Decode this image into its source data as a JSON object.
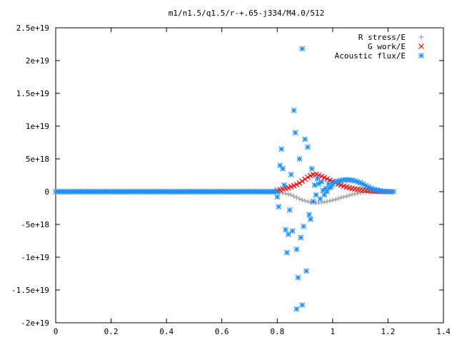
{
  "chart_data": {
    "type": "scatter",
    "title": "m1/n1.5/q1.5/r-+.65-j334/M4.0/512",
    "xlabel": "",
    "ylabel": "",
    "xlim": [
      0,
      1.4
    ],
    "ylim": [
      -2e+19,
      2.5e+19
    ],
    "grid": false,
    "legend_position": "top-right",
    "x_ticks": [
      {
        "value": 0,
        "label": "0"
      },
      {
        "value": 0.2,
        "label": "0.2"
      },
      {
        "value": 0.4,
        "label": "0.4"
      },
      {
        "value": 0.6,
        "label": "0.6"
      },
      {
        "value": 0.8,
        "label": "0.8"
      },
      {
        "value": 1.0,
        "label": "1"
      },
      {
        "value": 1.2,
        "label": "1.2"
      },
      {
        "value": 1.4,
        "label": "1.4"
      }
    ],
    "y_ticks": [
      {
        "value": 2.5e+19,
        "label": "2.5e+19"
      },
      {
        "value": 2e+19,
        "label": "2e+19"
      },
      {
        "value": 1.5e+19,
        "label": "1.5e+19"
      },
      {
        "value": 1e+19,
        "label": "1e+19"
      },
      {
        "value": 5e+18,
        "label": "5e+18"
      },
      {
        "value": 0,
        "label": "0"
      },
      {
        "value": -5e+18,
        "label": "-5e+18"
      },
      {
        "value": -1e+19,
        "label": "-1e+19"
      },
      {
        "value": -1.5e+19,
        "label": "-1.5e+19"
      },
      {
        "value": -2e+19,
        "label": "-2e+19"
      }
    ],
    "series": [
      {
        "name": "R stress/E",
        "marker": "plus",
        "color": "#a0a0a0",
        "points": [
          [
            0.8,
            0
          ],
          [
            0.81,
            -1e+17
          ],
          [
            0.82,
            -2e+17
          ],
          [
            0.83,
            -3e+17
          ],
          [
            0.84,
            -4e+17
          ],
          [
            0.85,
            -5e+17
          ],
          [
            0.86,
            -7e+17
          ],
          [
            0.87,
            -9e+17
          ],
          [
            0.88,
            -1.1e+18
          ],
          [
            0.89,
            -1.25e+18
          ],
          [
            0.9,
            -1.4e+18
          ],
          [
            0.91,
            -1.5e+18
          ],
          [
            0.92,
            -1.6e+18
          ],
          [
            0.93,
            -1.65e+18
          ],
          [
            0.94,
            -1.7e+18
          ],
          [
            0.95,
            -1.7e+18
          ],
          [
            0.96,
            -1.65e+18
          ],
          [
            0.97,
            -1.6e+18
          ],
          [
            0.98,
            -1.5e+18
          ],
          [
            0.99,
            -1.4e+18
          ],
          [
            1.0,
            -1.3e+18
          ],
          [
            1.01,
            -1.2e+18
          ],
          [
            1.02,
            -1.05e+18
          ],
          [
            1.03,
            -9e+17
          ],
          [
            1.04,
            -8e+17
          ],
          [
            1.05,
            -7e+17
          ],
          [
            1.06,
            -5.5e+17
          ],
          [
            1.07,
            -4.5e+17
          ],
          [
            1.08,
            -3.5e+17
          ],
          [
            1.09,
            -2.5e+17
          ],
          [
            1.1,
            -1.8e+17
          ],
          [
            1.11,
            -1.2e+17
          ],
          [
            1.12,
            -8e+16
          ],
          [
            1.13,
            -5e+16
          ],
          [
            1.14,
            -3e+16
          ],
          [
            1.15,
            -2e+16
          ],
          [
            1.16,
            -1e+16
          ],
          [
            1.17,
            -5000000000000000.0
          ],
          [
            1.18,
            0
          ],
          [
            1.19,
            0
          ],
          [
            1.2,
            0
          ],
          [
            1.21,
            0
          ]
        ]
      },
      {
        "name": "G work/E",
        "marker": "cross",
        "color": "#ff0000",
        "points": [
          [
            0.8,
            2e+17
          ],
          [
            0.81,
            3e+17
          ],
          [
            0.82,
            4e+17
          ],
          [
            0.83,
            5e+17
          ],
          [
            0.84,
            6e+17
          ],
          [
            0.85,
            7.5e+17
          ],
          [
            0.86,
            9e+17
          ],
          [
            0.87,
            1.1e+18
          ],
          [
            0.88,
            1.3e+18
          ],
          [
            0.89,
            1.6e+18
          ],
          [
            0.9,
            1.9e+18
          ],
          [
            0.91,
            2.2e+18
          ],
          [
            0.92,
            2.45e+18
          ],
          [
            0.93,
            2.6e+18
          ],
          [
            0.94,
            2.6e+18
          ],
          [
            0.95,
            2.5e+18
          ],
          [
            0.96,
            2.35e+18
          ],
          [
            0.97,
            2.15e+18
          ],
          [
            0.98,
            1.95e+18
          ],
          [
            0.99,
            1.75e+18
          ],
          [
            1.0,
            1.55e+18
          ],
          [
            1.01,
            1.35e+18
          ],
          [
            1.02,
            1.15e+18
          ],
          [
            1.03,
            1e+18
          ],
          [
            1.04,
            8.5e+17
          ],
          [
            1.05,
            7e+17
          ],
          [
            1.06,
            6e+17
          ],
          [
            1.07,
            5e+17
          ],
          [
            1.08,
            4.2e+17
          ],
          [
            1.09,
            3.5e+17
          ],
          [
            1.1,
            3e+17
          ],
          [
            1.11,
            2.5e+17
          ],
          [
            1.12,
            2e+17
          ],
          [
            1.13,
            1.6e+17
          ],
          [
            1.14,
            1.2e+17
          ],
          [
            1.15,
            9e+16
          ],
          [
            1.16,
            6e+16
          ],
          [
            1.17,
            4e+16
          ],
          [
            1.18,
            2e+16
          ],
          [
            1.19,
            1e+16
          ],
          [
            1.2,
            0
          ],
          [
            1.21,
            0
          ]
        ]
      },
      {
        "name": "Acoustic flux/E",
        "marker": "star",
        "color": "#1e90ff",
        "points": [
          [
            0.8,
            -8e+17
          ],
          [
            0.805,
            -2.3e+18
          ],
          [
            0.81,
            4e+18
          ],
          [
            0.815,
            6.5e+18
          ],
          [
            0.82,
            3.5e+18
          ],
          [
            0.825,
            1e+18
          ],
          [
            0.83,
            -5.8e+18
          ],
          [
            0.835,
            -9.3e+18
          ],
          [
            0.84,
            -6.5e+18
          ],
          [
            0.845,
            -2.8e+18
          ],
          [
            0.85,
            2.6e+18
          ],
          [
            0.855,
            -6e+18
          ],
          [
            0.86,
            1.24e+19
          ],
          [
            0.865,
            9e+18
          ],
          [
            0.87,
            -8.8e+18
          ],
          [
            0.875,
            -1.31e+19
          ],
          [
            0.88,
            5e+18
          ],
          [
            0.885,
            -7e+18
          ],
          [
            0.89,
            2.18e+19
          ],
          [
            0.895,
            -5.3e+18
          ],
          [
            0.9,
            8e+18
          ],
          [
            0.905,
            -1.21e+19
          ],
          [
            0.91,
            6.8e+18
          ],
          [
            0.915,
            -3.5e+18
          ],
          [
            0.92,
            -4.2e+18
          ],
          [
            0.925,
            3.5e+18
          ],
          [
            0.93,
            -1.5e+18
          ],
          [
            0.935,
            1e+18
          ],
          [
            0.94,
            -5e+17
          ],
          [
            0.945,
            2e+18
          ],
          [
            0.95,
            1.2e+18
          ],
          [
            0.955,
            -1.1e+18
          ],
          [
            0.96,
            1.5e+18
          ],
          [
            0.965,
            2e+17
          ],
          [
            0.97,
            -5e+17
          ],
          [
            0.975,
            5e+17
          ],
          [
            0.98,
            0
          ],
          [
            0.985,
            1.2e+18
          ],
          [
            0.99,
            6e+17
          ],
          [
            0.995,
            8e+17
          ],
          [
            1.0,
            1.2e+18
          ],
          [
            1.01,
            1.5e+18
          ],
          [
            1.02,
            1.6e+18
          ],
          [
            1.03,
            1.7e+18
          ],
          [
            1.04,
            1.8e+18
          ],
          [
            1.05,
            1.8e+18
          ],
          [
            1.06,
            1.8e+18
          ],
          [
            1.07,
            1.75e+18
          ],
          [
            1.08,
            1.65e+18
          ],
          [
            1.09,
            1.5e+18
          ],
          [
            1.1,
            1.35e+18
          ],
          [
            1.11,
            1.15e+18
          ],
          [
            1.12,
            9e+17
          ],
          [
            1.13,
            7e+17
          ],
          [
            1.14,
            5e+17
          ],
          [
            1.15,
            3.5e+17
          ],
          [
            1.16,
            2.5e+17
          ],
          [
            1.17,
            1.5e+17
          ],
          [
            1.18,
            8e+16
          ],
          [
            1.19,
            4e+16
          ],
          [
            1.2,
            0
          ],
          [
            1.21,
            0
          ],
          [
            1.22,
            0
          ],
          [
            0.87,
            -1.79e+19
          ],
          [
            0.89,
            -1.73e+19
          ]
        ],
        "baseline": {
          "from": 0,
          "to": 0.8,
          "value": 0
        }
      }
    ]
  }
}
